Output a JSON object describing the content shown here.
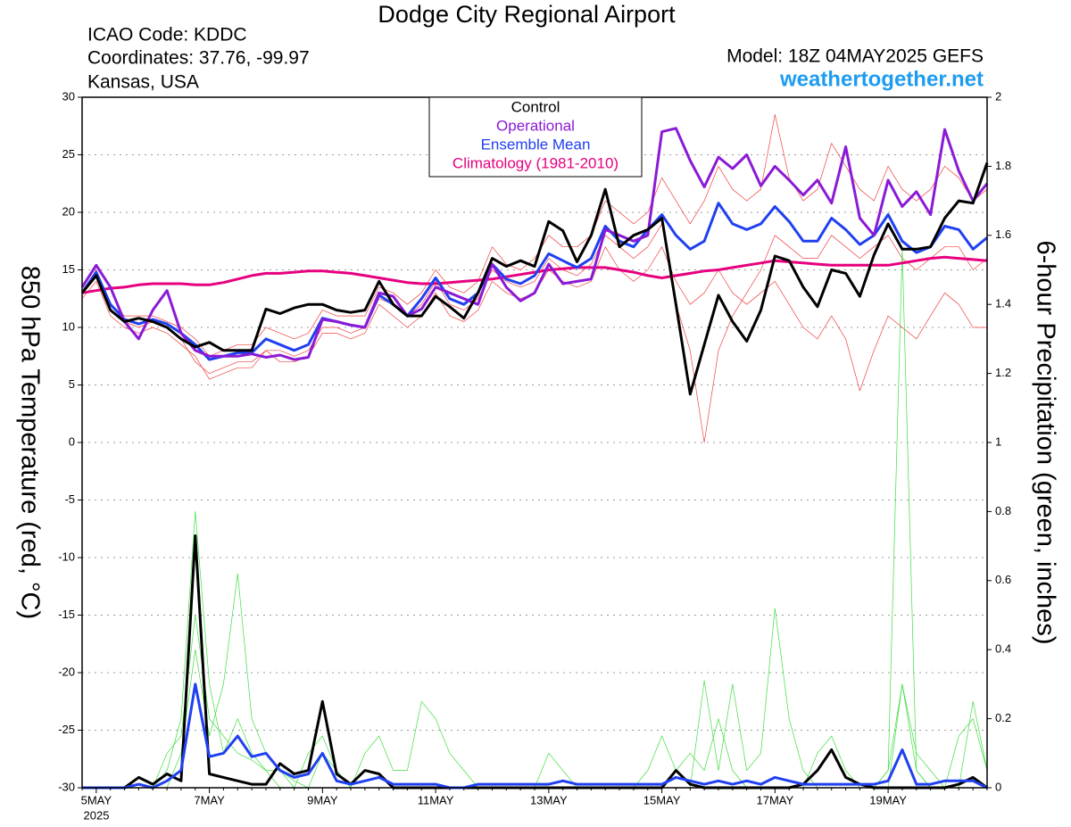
{
  "chart_data": {
    "type": "line",
    "title": "Dodge City Regional Airport",
    "info": [
      "ICAO Code: KDDC",
      "Coordinates: 37.76, -99.97",
      "Kansas, USA"
    ],
    "model": "Model: 18Z 04MAY2025 GEFS",
    "site": "weathertogether.net",
    "ylabel": "850 hPa Temperature (red, °C)",
    "y2label": "6-hour Precipitation (green, inches)",
    "x_sublabel": "2025",
    "categories": [
      null,
      "5MAY",
      null,
      null,
      null,
      null,
      null,
      null,
      null,
      "7MAY",
      null,
      null,
      null,
      null,
      null,
      null,
      null,
      "9MAY",
      null,
      null,
      null,
      null,
      null,
      null,
      null,
      "11MAY",
      null,
      null,
      null,
      null,
      null,
      null,
      null,
      "13MAY",
      null,
      null,
      null,
      null,
      null,
      null,
      null,
      "15MAY",
      null,
      null,
      null,
      null,
      null,
      null,
      null,
      "17MAY",
      null,
      null,
      null,
      null,
      null,
      null,
      null,
      "19MAY",
      null,
      null,
      null,
      null,
      null,
      null,
      null
    ],
    "ylim": [
      -30,
      30
    ],
    "yticks": [
      -30,
      -25,
      -20,
      -15,
      -10,
      -5,
      0,
      5,
      10,
      15,
      20,
      25,
      30
    ],
    "y2lim": [
      0,
      2
    ],
    "y2ticks": [
      0,
      0.2,
      0.4,
      0.6,
      0.8,
      1,
      1.2,
      1.4,
      1.6,
      1.8,
      2
    ],
    "grid": true,
    "legend": "top-center",
    "series": [
      {
        "color": "#f04040",
        "width": 0.7,
        "values": [
          13.0,
          14.5,
          11.5,
          10.5,
          10.0,
          10.5,
          10.0,
          9.0,
          7.0,
          6.0,
          6.5,
          7.0,
          7.0,
          8.0,
          8.0,
          7.5,
          8.0,
          10.0,
          10.0,
          9.5,
          10.0,
          12.5,
          12.0,
          11.0,
          12.0,
          14.0,
          12.0,
          11.5,
          12.5,
          15.0,
          14.0,
          13.5,
          14.0,
          16.0,
          15.0,
          14.5,
          15.5,
          18.0,
          17.0,
          16.0,
          17.0,
          19.0,
          12.0,
          8.0,
          0.0,
          8.0,
          11.0,
          13.0,
          15.0,
          18.0,
          17.0,
          16.0,
          16.0,
          18.0,
          17.0,
          16.0,
          17.0,
          18.0,
          16.0,
          15.0,
          16.0,
          17.0,
          17.0,
          15.0,
          16.0
        ]
      },
      {
        "color": "#f04040",
        "width": 0.7,
        "values": [
          13.0,
          15.0,
          12.0,
          11.0,
          11.0,
          11.0,
          10.5,
          10.0,
          9.0,
          7.5,
          8.0,
          8.5,
          8.5,
          10.0,
          9.5,
          9.0,
          9.5,
          11.5,
          11.0,
          11.0,
          11.0,
          13.5,
          13.0,
          12.0,
          13.0,
          15.0,
          13.5,
          13.0,
          14.0,
          17.0,
          15.5,
          15.0,
          16.0,
          18.0,
          17.0,
          17.0,
          18.0,
          21.0,
          20.0,
          19.0,
          20.0,
          23.0,
          21.0,
          19.0,
          21.0,
          24.0,
          22.0,
          21.0,
          22.0,
          28.5,
          23.0,
          21.0,
          22.0,
          26.0,
          24.0,
          22.0,
          21.0,
          24.0,
          22.0,
          21.0,
          22.0,
          24.0,
          23.0,
          21.0,
          22.0
        ]
      },
      {
        "color": "#f04040",
        "width": 0.7,
        "values": [
          12.5,
          14.0,
          11.0,
          10.0,
          9.5,
          10.0,
          9.5,
          8.5,
          7.5,
          5.5,
          6.0,
          6.5,
          6.5,
          8.0,
          7.0,
          7.0,
          7.5,
          9.5,
          9.5,
          9.0,
          9.5,
          12.0,
          11.0,
          10.0,
          11.0,
          13.0,
          11.0,
          10.5,
          11.5,
          14.0,
          13.0,
          12.5,
          13.0,
          15.0,
          14.0,
          13.5,
          14.0,
          17.0,
          15.0,
          14.0,
          15.0,
          17.0,
          14.0,
          12.0,
          13.0,
          15.0,
          13.0,
          12.0,
          13.0,
          14.0,
          12.0,
          10.0,
          9.0,
          11.0,
          9.0,
          4.5,
          8.0,
          11.0,
          10.0,
          9.0,
          11.0,
          13.0,
          12.0,
          10.0,
          10.0
        ]
      },
      {
        "color": "#40dd40",
        "width": 0.7,
        "axis": "y2",
        "values": [
          0,
          0,
          0,
          0,
          0,
          0,
          0.05,
          0.2,
          0.8,
          0.3,
          0.1,
          0.2,
          0.1,
          0.05,
          0.05,
          0.02,
          0,
          0,
          0,
          0,
          0,
          0,
          0,
          0,
          0,
          0,
          0,
          0,
          0,
          0,
          0,
          0,
          0,
          0,
          0,
          0,
          0,
          0,
          0,
          0,
          0,
          0,
          0,
          0,
          0,
          0,
          0,
          0,
          0,
          0,
          0,
          0,
          0,
          0,
          0,
          0,
          0,
          0.05,
          1.56,
          0.05,
          0,
          0,
          0,
          0,
          0
        ]
      },
      {
        "color": "#40dd40",
        "width": 0.7,
        "axis": "y2",
        "values": [
          0,
          0,
          0,
          0,
          0,
          0,
          0,
          0.1,
          0.4,
          0.15,
          0.3,
          0.62,
          0.2,
          0.1,
          0.05,
          0,
          0.1,
          0.15,
          0.05,
          0,
          0,
          0,
          0,
          0,
          0,
          0,
          0,
          0,
          0,
          0,
          0,
          0,
          0,
          0,
          0,
          0,
          0,
          0,
          0,
          0,
          0,
          0,
          0,
          0,
          0.31,
          0.05,
          0.3,
          0.05,
          0.1,
          0.52,
          0.2,
          0.05,
          0,
          0,
          0,
          0,
          0,
          0.05,
          0.3,
          0.05,
          0,
          0,
          0,
          0.25,
          0.05
        ]
      },
      {
        "color": "#40dd40",
        "width": 0.7,
        "axis": "y2",
        "values": [
          0,
          0,
          0,
          0,
          0,
          0,
          0.1,
          0.15,
          0.5,
          0.2,
          0.15,
          0.1,
          0.08,
          0.05,
          0,
          0,
          0,
          0.1,
          0.05,
          0,
          0.1,
          0.15,
          0.05,
          0.05,
          0.25,
          0.2,
          0.1,
          0.05,
          0,
          0,
          0,
          0,
          0,
          0.1,
          0.05,
          0,
          0,
          0,
          0,
          0,
          0.05,
          0.15,
          0.05,
          0.1,
          0.05,
          0.2,
          0.05,
          0,
          0,
          0,
          0,
          0,
          0.1,
          0.15,
          0.05,
          0,
          0,
          0,
          0.3,
          0.1,
          0.05,
          0,
          0.15,
          0.2,
          0.05
        ]
      },
      {
        "color": "#000000",
        "width": 3,
        "axis": "y2",
        "values": [
          0,
          0,
          0,
          0,
          0.03,
          0.01,
          0.04,
          0.02,
          0.73,
          0.04,
          0.03,
          0.02,
          0.01,
          0.01,
          0.07,
          0.04,
          0.05,
          0.25,
          0.04,
          0.01,
          0.05,
          0.04,
          0,
          0,
          0,
          0,
          0,
          0,
          0,
          0,
          0,
          0,
          0,
          0,
          0,
          0,
          0,
          0,
          0,
          0,
          0,
          0,
          0.05,
          0.01,
          0,
          0,
          0,
          0,
          0,
          0,
          0,
          0.01,
          0.05,
          0.11,
          0.03,
          0.01,
          0,
          0,
          0,
          0,
          0,
          0,
          0.01,
          0.03,
          0
        ]
      },
      {
        "color": "#2040f0",
        "width": 3,
        "axis": "y2",
        "values": [
          0,
          0,
          0,
          0,
          0.01,
          0,
          0.02,
          0.05,
          0.3,
          0.09,
          0.1,
          0.15,
          0.09,
          0.1,
          0.05,
          0.03,
          0.04,
          0.1,
          0.02,
          0.01,
          0.02,
          0.03,
          0.01,
          0.01,
          0.01,
          0.01,
          0,
          0,
          0.01,
          0.01,
          0.01,
          0.01,
          0.01,
          0.01,
          0.02,
          0.01,
          0.01,
          0.01,
          0.01,
          0.01,
          0.01,
          0.01,
          0.03,
          0.02,
          0.01,
          0.02,
          0.01,
          0.02,
          0.01,
          0.03,
          0.02,
          0.01,
          0.01,
          0.01,
          0.01,
          0.01,
          0.01,
          0.02,
          0.11,
          0.01,
          0.01,
          0.02,
          0.02,
          0.02,
          0
        ]
      },
      {
        "name": "Climatology (1981-2010)",
        "color": "#e6007e",
        "width": 3,
        "values": [
          13.0,
          13.2,
          13.4,
          13.5,
          13.7,
          13.8,
          13.8,
          13.8,
          13.7,
          13.7,
          13.9,
          14.2,
          14.5,
          14.7,
          14.7,
          14.8,
          14.9,
          14.9,
          14.8,
          14.7,
          14.5,
          14.3,
          14.1,
          13.9,
          13.8,
          13.8,
          13.9,
          14.0,
          14.1,
          14.2,
          14.4,
          14.6,
          14.8,
          15.0,
          15.1,
          15.2,
          15.2,
          15.2,
          15.0,
          14.8,
          14.5,
          14.3,
          14.5,
          14.7,
          14.9,
          15.0,
          15.2,
          15.4,
          15.6,
          15.8,
          15.7,
          15.6,
          15.5,
          15.4,
          15.4,
          15.4,
          15.4,
          15.4,
          15.6,
          15.8,
          16.0,
          16.1,
          16.0,
          15.9,
          15.8
        ]
      },
      {
        "name": "Ensemble Mean",
        "color": "#2040f0",
        "width": 3,
        "values": [
          13.0,
          14.8,
          12.0,
          10.7,
          10.3,
          10.7,
          10.3,
          9.5,
          8.5,
          7.2,
          7.5,
          7.8,
          7.8,
          9.0,
          8.5,
          8.0,
          8.5,
          10.8,
          10.5,
          10.2,
          10.0,
          12.8,
          12.0,
          11.0,
          12.5,
          14.3,
          12.5,
          12.0,
          13.0,
          15.5,
          14.2,
          13.8,
          14.5,
          16.4,
          15.8,
          15.2,
          16.0,
          18.8,
          17.5,
          17.0,
          18.5,
          19.8,
          18.0,
          16.8,
          17.5,
          20.8,
          19.0,
          18.5,
          19.0,
          20.5,
          19.2,
          17.5,
          17.5,
          19.5,
          18.5,
          17.2,
          18.0,
          19.8,
          17.5,
          16.5,
          17.0,
          18.8,
          18.5,
          16.8,
          17.8
        ]
      },
      {
        "name": "Operational",
        "color": "#8a1ad6",
        "width": 3,
        "values": [
          13.5,
          15.4,
          13.5,
          10.5,
          9.0,
          11.5,
          13.2,
          9.5,
          8.0,
          7.5,
          7.5,
          7.5,
          7.7,
          7.4,
          7.6,
          7.2,
          7.4,
          10.7,
          10.5,
          10.2,
          10.0,
          13.0,
          12.7,
          11.0,
          11.6,
          13.5,
          13.0,
          12.5,
          12.0,
          15.5,
          13.5,
          12.3,
          13.0,
          15.5,
          13.8,
          14.0,
          14.2,
          18.5,
          18.0,
          17.5,
          18.0,
          27.0,
          27.3,
          24.5,
          22.2,
          24.8,
          23.8,
          25.0,
          22.3,
          24.0,
          22.8,
          21.5,
          22.8,
          20.8,
          25.7,
          19.5,
          18.0,
          22.8,
          20.5,
          21.8,
          19.8,
          27.2,
          23.6,
          21.0,
          22.5
        ]
      },
      {
        "name": "Control",
        "color": "#000000",
        "width": 3,
        "values": [
          13.0,
          14.5,
          11.5,
          10.5,
          10.8,
          10.5,
          10.0,
          9.0,
          8.3,
          8.7,
          8.0,
          8.0,
          8.0,
          11.6,
          11.2,
          11.7,
          12.0,
          12.0,
          11.5,
          11.3,
          11.5,
          14.0,
          12.0,
          11.0,
          11.0,
          12.7,
          11.8,
          10.8,
          13.0,
          16.0,
          15.3,
          15.8,
          15.3,
          19.2,
          18.4,
          15.7,
          18.0,
          22.0,
          17.0,
          18.0,
          18.5,
          19.5,
          12.0,
          4.2,
          8.5,
          12.8,
          10.5,
          8.8,
          11.5,
          16.2,
          15.8,
          13.5,
          11.8,
          15.0,
          14.7,
          12.7,
          16.3,
          19.0,
          16.8,
          16.8,
          17.0,
          19.5,
          21.0,
          20.8,
          24.3
        ]
      }
    ]
  }
}
